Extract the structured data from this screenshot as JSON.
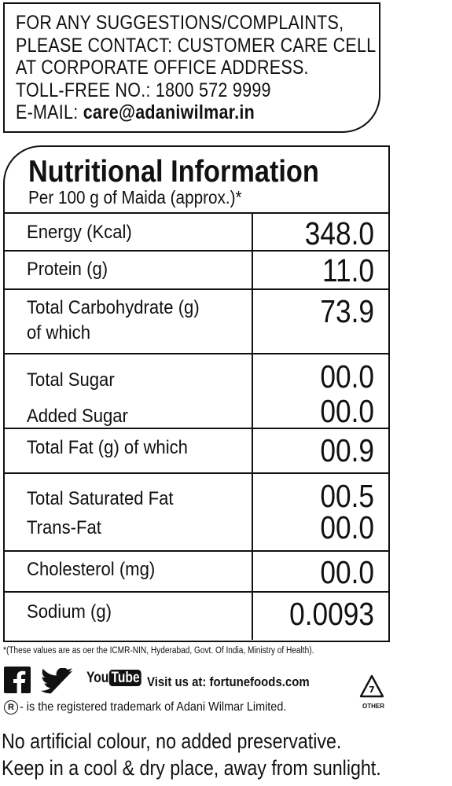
{
  "contact": {
    "line1": "FOR ANY SUGGESTIONS/COMPLAINTS,",
    "line2": "PLEASE CONTACT: CUSTOMER CARE CELL",
    "line3": "AT CORPORATE OFFICE ADDRESS.",
    "tollfree_label": "TOLL-FREE NO.:",
    "tollfree_number": "1800 572 9999",
    "email_label": "E-MAIL:",
    "email": "care@adaniwilmar.in"
  },
  "nutrition": {
    "title": "Nutritional Information",
    "subtitle": "Per 100 g of Maida (approx.)*",
    "rows": [
      {
        "labels": [
          "Energy (Kcal)"
        ],
        "values": [
          "348.0"
        ]
      },
      {
        "labels": [
          "Protein (g)"
        ],
        "values": [
          "11.0"
        ]
      },
      {
        "labels": [
          "Total Carbohydrate (g)",
          "of which"
        ],
        "values": [
          "73.9"
        ]
      },
      {
        "labels": [
          "Total Sugar",
          "Added Sugar"
        ],
        "values": [
          "00.0",
          "00.0"
        ]
      },
      {
        "labels": [
          "Total Fat (g) of which"
        ],
        "values": [
          "00.9"
        ]
      },
      {
        "labels": [
          "Total Saturated Fat",
          "Trans-Fat"
        ],
        "values": [
          "00.5",
          "00.0"
        ]
      },
      {
        "labels": [
          "Cholesterol (mg)"
        ],
        "values": [
          "00.0"
        ]
      },
      {
        "labels": [
          "Sodium (g)"
        ],
        "values": [
          "0.0093"
        ]
      }
    ]
  },
  "footnote": "*(These values are as oer the ICMR-NIN, Hyderabad, Govt. Of India, Ministry of Health).",
  "social": {
    "icons": [
      "facebook-icon",
      "twitter-icon",
      "youtube-icon"
    ],
    "youtube_you": "You",
    "youtube_tube": "Tube",
    "visit_text": "Visit us at: fortunefoods.com"
  },
  "trademark": {
    "symbol": "R",
    "text": "- is the registered trademark of Adani Wilmar Limited."
  },
  "recycle": {
    "number": "7",
    "label": "OTHER"
  },
  "notes": [
    "No artificial colour, no added preservative.",
    "Keep in a cool & dry place, away from sunlight."
  ]
}
